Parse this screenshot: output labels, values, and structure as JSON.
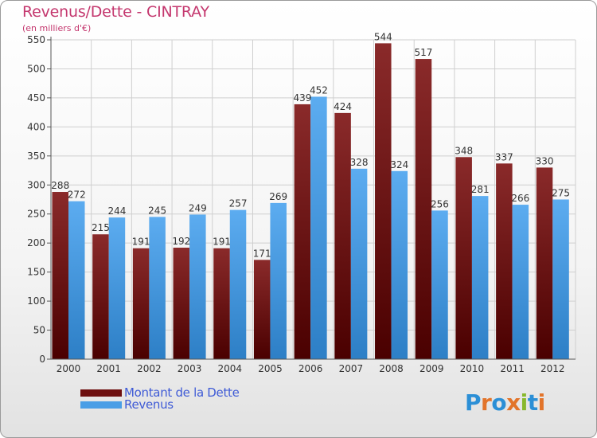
{
  "header": {
    "title": "Revenus/Dette - CINTRAY",
    "subtitle": "(en milliers d'€)"
  },
  "legend": {
    "items": [
      {
        "label": "Montant de la Dette",
        "color": "#6e1010"
      },
      {
        "label": "Revenus",
        "color": "#4a9ee6"
      }
    ]
  },
  "logo": {
    "text": "Proxiti",
    "letters": [
      "P",
      "r",
      "o",
      "x",
      "i",
      "t",
      "i"
    ],
    "colors": [
      "#2b8fd6",
      "#e2742a",
      "#2b8fd6",
      "#e2742a",
      "#88b82c",
      "#2b8fd6",
      "#e2742a"
    ]
  },
  "colors": {
    "title": "#c4376e",
    "debt": "#6e1010",
    "revenue": "#4a9ee6",
    "axis": "#555555",
    "grid": "#cfcfcf",
    "legend_text": "#3f5bd6"
  },
  "chart_data": {
    "type": "bar",
    "title": "Revenus/Dette - CINTRAY",
    "ylabel": "(en milliers d'€)",
    "xlabel": "",
    "categories": [
      "2000",
      "2001",
      "2002",
      "2003",
      "2004",
      "2005",
      "2006",
      "2007",
      "2008",
      "2009",
      "2010",
      "2011",
      "2012"
    ],
    "series": [
      {
        "name": "Montant de la Dette",
        "values": [
          288,
          215,
          191,
          192,
          191,
          171,
          439,
          424,
          544,
          517,
          348,
          337,
          330
        ]
      },
      {
        "name": "Revenus",
        "values": [
          272,
          244,
          245,
          249,
          257,
          269,
          452,
          328,
          324,
          256,
          281,
          266,
          275
        ]
      }
    ],
    "ylim": [
      0,
      550
    ],
    "yticks": [
      0,
      50,
      100,
      150,
      200,
      250,
      300,
      350,
      400,
      450,
      500,
      550
    ],
    "grid": true,
    "legend_position": "bottom-left"
  }
}
